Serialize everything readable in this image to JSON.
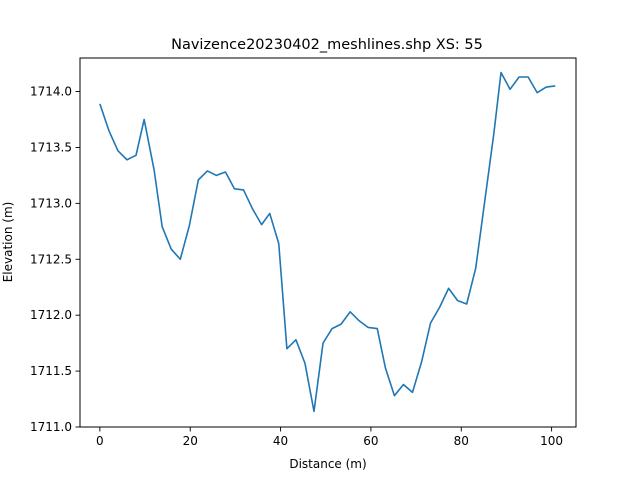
{
  "chart_data": {
    "type": "line",
    "title": "Navizence20230402_meshlines.shp XS: 55",
    "xlabel": "Distance (m)",
    "ylabel": "Elevation (m)",
    "xlim": [
      -4.4,
      105.4
    ],
    "ylim": [
      1711.0,
      1714.3
    ],
    "x_ticks": [
      0,
      20,
      40,
      60,
      80,
      100
    ],
    "y_ticks": [
      1711.0,
      1711.5,
      1712.0,
      1712.5,
      1713.0,
      1713.5,
      1714.0
    ],
    "x_tick_labels": [
      "0",
      "20",
      "40",
      "60",
      "80",
      "100"
    ],
    "y_tick_labels": [
      "1711.0",
      "1711.5",
      "1712.0",
      "1712.5",
      "1713.0",
      "1713.5",
      "1714.0"
    ],
    "grid": false,
    "line_color": "#1f77b4",
    "series": [
      {
        "x": [
          0,
          2,
          4,
          6,
          8,
          9.8,
          12,
          13.8,
          15.8,
          17.8,
          19.8,
          21.8,
          23.8,
          25.8,
          27.8,
          29.8,
          31.8,
          33.8,
          35.8,
          37.6,
          39.6,
          41.4,
          43.4,
          45.4,
          47.4,
          49.4,
          51.4,
          53.4,
          55.4,
          57.4,
          59.4,
          61.4,
          63.2,
          65.2,
          67.2,
          69.2,
          71.2,
          73.2,
          75.2,
          77.2,
          79.2,
          81.2,
          83.2,
          85.2,
          87.2,
          88.8,
          90.8,
          92.8,
          94.8,
          96.8,
          98.8,
          100.8
        ],
        "y": [
          1713.89,
          1713.65,
          1713.47,
          1713.39,
          1713.43,
          1713.75,
          1713.3,
          1712.79,
          1712.59,
          1712.5,
          1712.8,
          1713.21,
          1713.29,
          1713.25,
          1713.28,
          1713.13,
          1713.12,
          1712.95,
          1712.81,
          1712.91,
          1712.64,
          1711.7,
          1711.78,
          1711.57,
          1711.14,
          1711.75,
          1711.88,
          1711.92,
          1712.03,
          1711.95,
          1711.89,
          1711.88,
          1711.53,
          1711.28,
          1711.38,
          1711.31,
          1711.58,
          1711.93,
          1712.07,
          1712.24,
          1712.13,
          1712.1,
          1712.42,
          1713.02,
          1713.62,
          1714.17,
          1714.02,
          1714.13,
          1714.13,
          1713.99,
          1714.04,
          1714.05
        ]
      }
    ]
  }
}
